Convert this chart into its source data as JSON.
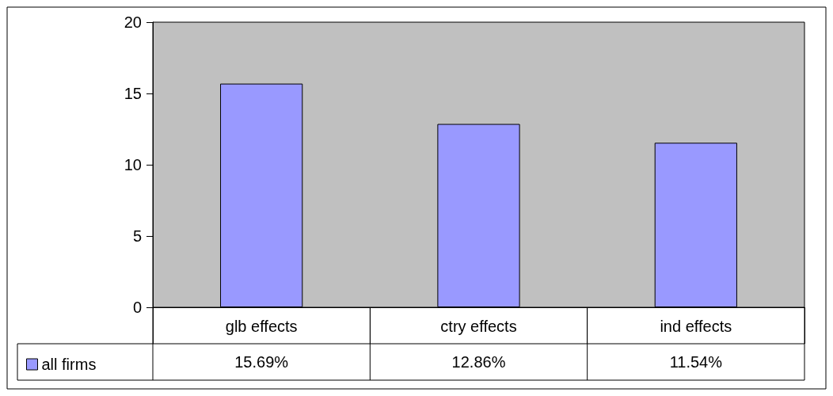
{
  "chart_data": {
    "type": "bar",
    "categories": [
      "glb effects",
      "ctry effects",
      "ind effects"
    ],
    "series": [
      {
        "name": "all firms",
        "color": "#9999ff",
        "values": [
          15.69,
          12.86,
          11.54
        ],
        "value_labels": [
          "15.69%",
          "12.86%",
          "11.54%"
        ]
      }
    ],
    "ylim": [
      0,
      20
    ],
    "yticks": [
      0,
      5,
      10,
      15,
      20
    ],
    "grid": false,
    "legend": "bottom left"
  }
}
